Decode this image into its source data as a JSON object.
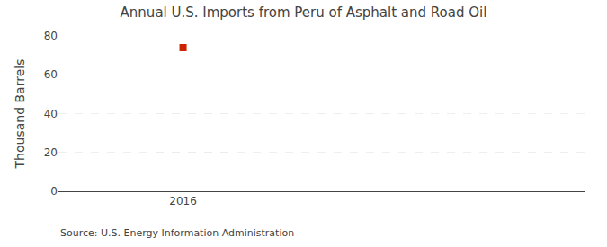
{
  "chart_data": {
    "type": "scatter",
    "title": "Annual U.S. Imports from Peru of Asphalt and Road Oil",
    "ylabel": "Thousand Barrels",
    "annotations": [
      "Source: U.S. Energy Information Administration"
    ],
    "x": [
      2016
    ],
    "values": [
      74
    ],
    "color": "#cc2200",
    "marker": "square",
    "xlim": [
      2015.55,
      2017.45
    ],
    "xticks": [
      2016
    ],
    "ylim": [
      0,
      80
    ],
    "yticks": [
      0,
      20,
      40,
      60,
      80
    ],
    "grid": true
  }
}
